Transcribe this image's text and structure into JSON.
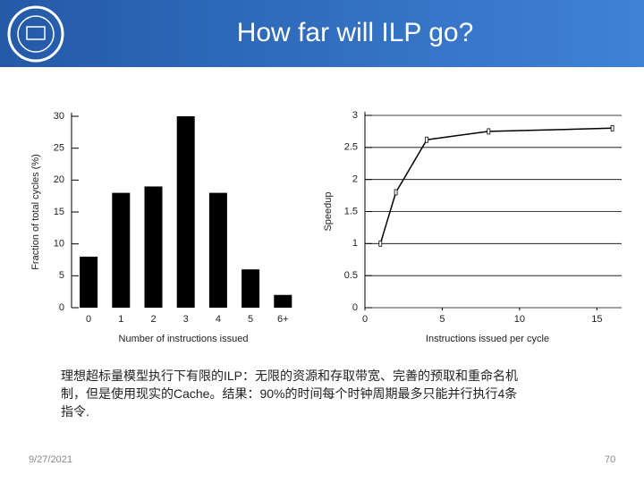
{
  "title": "How far will ILP go?",
  "caption": [
    "理想超标量模型执行下有限的ILP：无限的资源和存取带宽、完善的预取和重命名机",
    "制，但是使用现实的Cache。结果：90%的时间每个时钟周期最多只能并行执行4条",
    "指令."
  ],
  "date": "9/27/2021",
  "page_number": "70",
  "chart_data": [
    {
      "type": "bar",
      "ylabel": "Fraction of total cycles (%)",
      "xlabel": "Number of instructions issued",
      "categories": [
        "0",
        "1",
        "2",
        "3",
        "4",
        "5",
        "6+"
      ],
      "values": [
        8,
        18,
        19,
        30,
        18,
        6,
        2
      ],
      "color": "#000000",
      "ylim": [
        0,
        30
      ],
      "yticks": [
        0,
        5,
        10,
        15,
        20,
        25,
        30
      ],
      "grid": false
    },
    {
      "type": "line",
      "ylabel": "Speedup",
      "xlabel": "Instructions issued per cycle",
      "x": [
        1,
        2,
        4,
        8,
        16
      ],
      "values": [
        1,
        1.8,
        2.62,
        2.75,
        2.8
      ],
      "color": "#000000",
      "xlim": [
        0,
        16.6
      ],
      "xticks": [
        0,
        5,
        10,
        15
      ],
      "ylim": [
        0,
        3
      ],
      "yticks": [
        0,
        {
          "value": 0.5,
          "label": "0.5"
        },
        1,
        {
          "value": 1.5,
          "label": "1.5"
        },
        2,
        {
          "value": 2.5,
          "label": "2.5"
        },
        3
      ],
      "grid": true
    }
  ]
}
